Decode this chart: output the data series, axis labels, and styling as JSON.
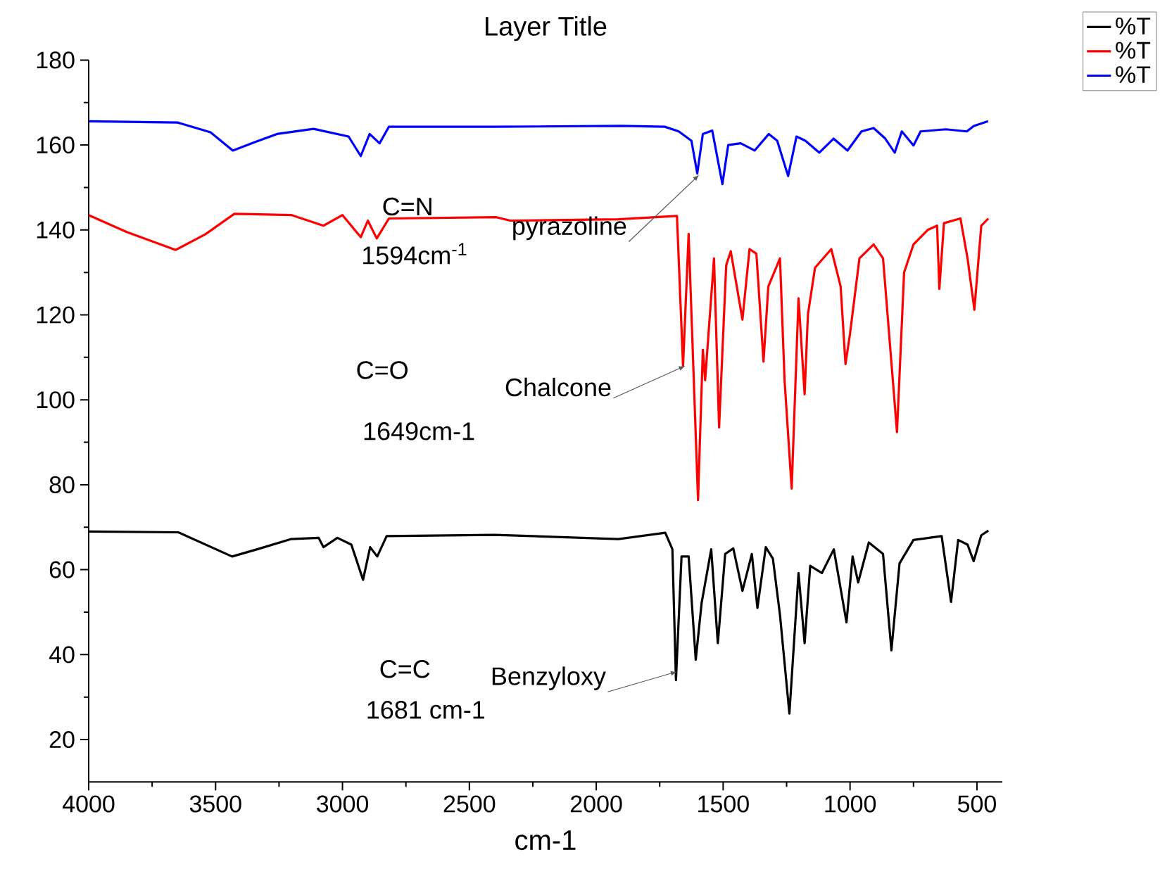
{
  "chart_data": {
    "type": "line",
    "title": "Layer Title",
    "xlabel": "cm-1",
    "xlim": [
      4000,
      400
    ],
    "ylim": [
      10,
      180
    ],
    "xticks": [
      4000,
      3500,
      3000,
      2500,
      2000,
      1500,
      1000,
      500
    ],
    "yticks": [
      20,
      40,
      60,
      80,
      100,
      120,
      140,
      160,
      180
    ],
    "legend": "top right",
    "series": [
      {
        "name": "%T",
        "color": "#000000",
        "x": [
          4000,
          3647,
          3435,
          3336,
          3204,
          3094,
          3075,
          3020,
          2965,
          2919,
          2891,
          2863,
          2826,
          2400,
          1913,
          1728,
          1700,
          1686,
          1664,
          1636,
          1608,
          1585,
          1547,
          1521,
          1492,
          1460,
          1424,
          1387,
          1365,
          1332,
          1304,
          1276,
          1239,
          1203,
          1179,
          1157,
          1111,
          1064,
          1014,
          990,
          968,
          926,
          870,
          837,
          805,
          750,
          639,
          602,
          574,
          537,
          513,
          483,
          455
        ],
        "values": [
          69,
          68.8,
          63.1,
          64.8,
          67.2,
          67.5,
          65.3,
          67.5,
          65.9,
          57.6,
          65.3,
          63.1,
          67.9,
          68.2,
          67.2,
          68.7,
          64.8,
          34,
          63.1,
          63.1,
          38.8,
          52.1,
          64.8,
          42.7,
          63.7,
          65,
          55,
          63.7,
          51,
          65.3,
          62.6,
          49.3,
          26.1,
          59.2,
          42.7,
          60.9,
          59.2,
          64.8,
          47.6,
          63.1,
          57,
          66.4,
          63.7,
          41,
          61.5,
          67,
          67.9,
          52.4,
          67,
          65.9,
          62,
          68.1,
          69.2
        ]
      },
      {
        "name": "%T",
        "color": "#ff0000",
        "x": [
          4000,
          3850,
          3657,
          3540,
          3426,
          3200,
          3075,
          3000,
          2928,
          2900,
          2865,
          2817,
          2394,
          2339,
          1913,
          1682,
          1658,
          1636,
          1599,
          1580,
          1571,
          1536,
          1516,
          1488,
          1470,
          1424,
          1396,
          1369,
          1341,
          1322,
          1276,
          1258,
          1230,
          1203,
          1179,
          1166,
          1138,
          1074,
          1037,
          1018,
          1000,
          963,
          907,
          870,
          815,
          787,
          750,
          694,
          657,
          648,
          630,
          565,
          537,
          510,
          483,
          455
        ],
        "values": [
          143.5,
          139.5,
          135.3,
          139,
          143.8,
          143.5,
          141,
          143.5,
          138.3,
          142.2,
          138,
          142.7,
          143,
          142.2,
          142.5,
          143.3,
          107.9,
          139.1,
          76.4,
          111.8,
          104.6,
          133.3,
          93.5,
          131.7,
          135,
          118.9,
          135.5,
          134.4,
          109,
          126.7,
          133.3,
          104.6,
          79.1,
          123.9,
          101.3,
          120.1,
          131.1,
          135.5,
          126.7,
          108.4,
          115.6,
          133.3,
          136.6,
          133.3,
          92.4,
          130,
          136.6,
          140,
          141,
          126.1,
          141.6,
          142.7,
          133.3,
          121.2,
          141,
          142.7
        ]
      },
      {
        "name": "%T",
        "color": "#0000ff",
        "x": [
          4000,
          3650,
          3520,
          3432,
          3340,
          3258,
          3114,
          2976,
          2928,
          2893,
          2854,
          2817,
          2400,
          1900,
          1730,
          1675,
          1625,
          1602,
          1580,
          1543,
          1503,
          1480,
          1431,
          1376,
          1320,
          1287,
          1244,
          1211,
          1176,
          1121,
          1065,
          1010,
          955,
          907,
          861,
          824,
          796,
          750,
          722,
          623,
          540,
          512,
          456
        ],
        "values": [
          165.6,
          165.3,
          163,
          158.7,
          160.8,
          162.6,
          163.8,
          162,
          157.4,
          162.6,
          160.4,
          164.3,
          164.3,
          164.5,
          164.3,
          163.2,
          161,
          153.3,
          162.6,
          163.4,
          150.8,
          160,
          160.4,
          158.7,
          162.6,
          161,
          152.7,
          162,
          161,
          158.2,
          161.5,
          158.7,
          163.2,
          164,
          161.5,
          158.2,
          163.2,
          159.9,
          163.2,
          163.7,
          163.2,
          164.5,
          165.6
        ]
      }
    ],
    "annotations": [
      "C=N",
      "1594cm$^{-1}$",
      {
        "text": "pyrazoline",
        "x": 1594,
        "y": 153
      },
      "C=O",
      "1649cm-1",
      {
        "text": "Chalcone",
        "x": 1649,
        "y": 108
      },
      "C=C",
      "1681 cm-1",
      {
        "text": "Benzyloxy",
        "x": 1681,
        "y": 36
      }
    ]
  }
}
